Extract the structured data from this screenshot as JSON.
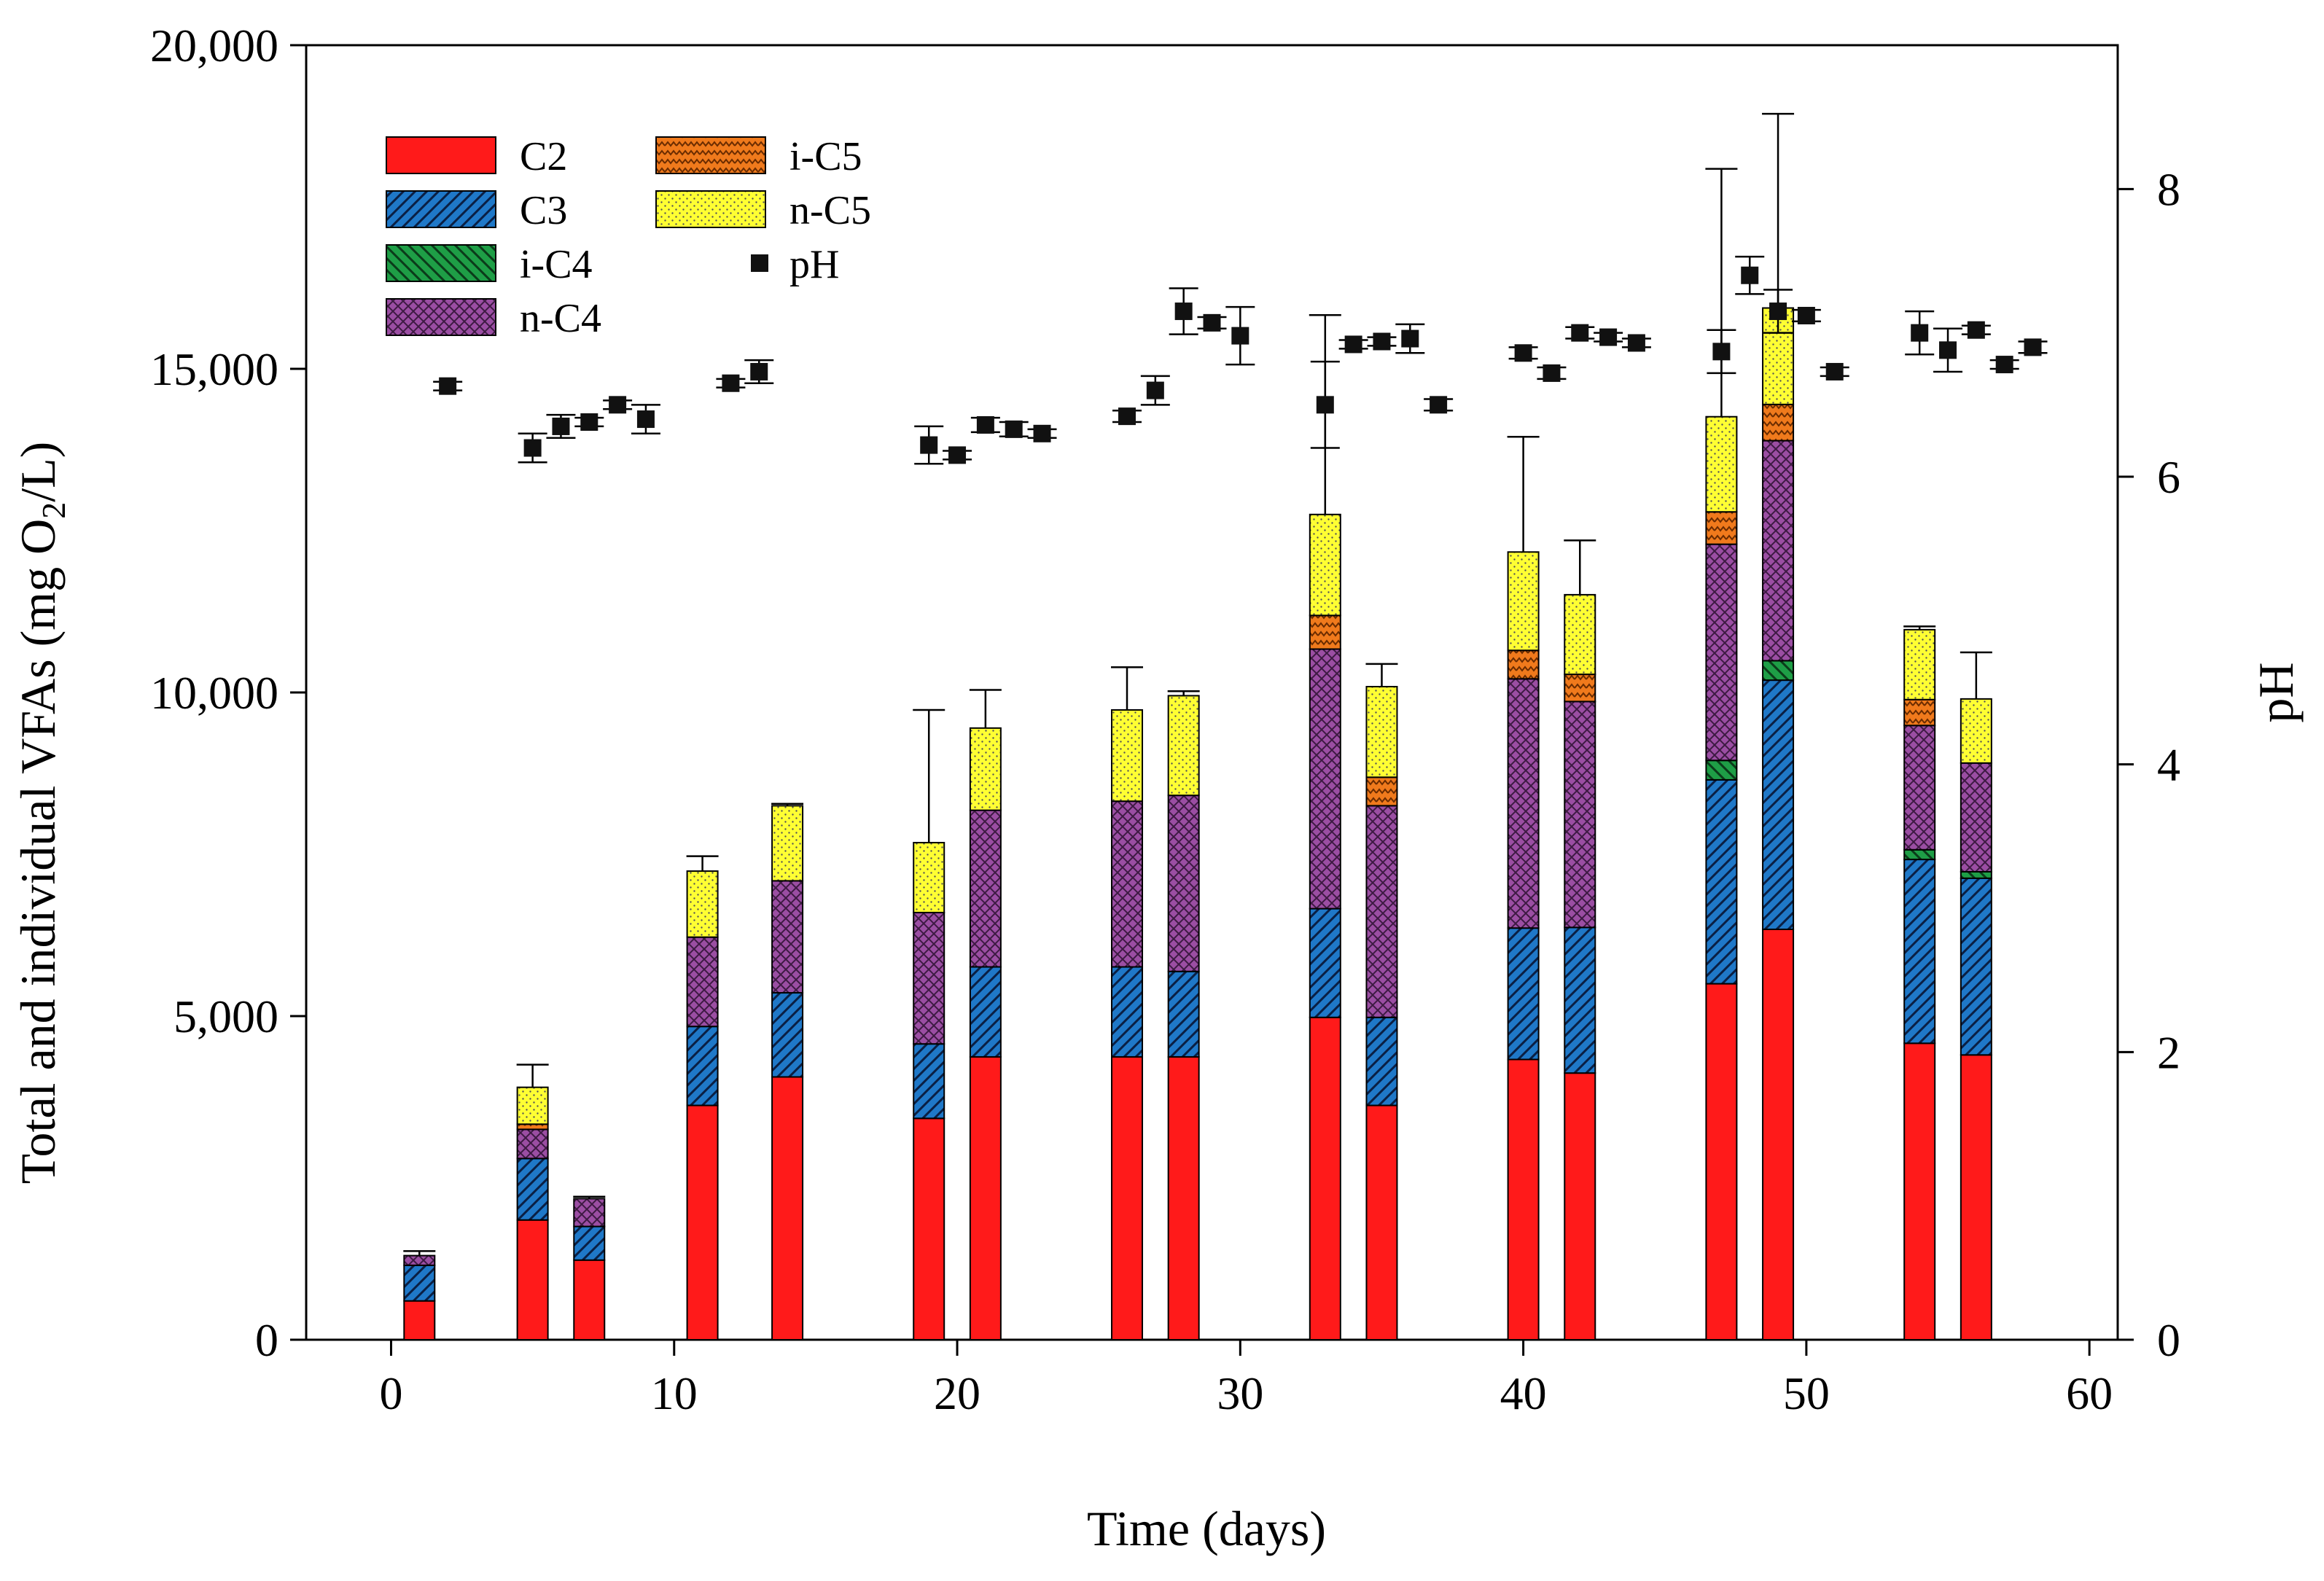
{
  "chart_data": {
    "type": "bar",
    "subtype": "stacked bar with pH scatter on secondary axis",
    "xlabel": "Time (days)",
    "ylabel_parts": [
      "Total and individual VFAs (mg O",
      "2",
      "/L)"
    ],
    "y2label": "pH",
    "xlim": [
      -3,
      61
    ],
    "ylim": [
      0,
      20000
    ],
    "y2lim": [
      0,
      9
    ],
    "x_ticks": [
      0,
      10,
      20,
      30,
      40,
      50,
      60
    ],
    "x_tick_labels": [
      "0",
      "10",
      "20",
      "30",
      "40",
      "50",
      "60"
    ],
    "y_ticks": [
      0,
      5000,
      10000,
      15000,
      20000
    ],
    "y_tick_labels": [
      "0",
      "5,000",
      "10,000",
      "15,000",
      "20,000"
    ],
    "y2_ticks": [
      0,
      2,
      4,
      6,
      8
    ],
    "y2_tick_labels": [
      "0",
      "2",
      "4",
      "6",
      "8"
    ],
    "grid": false,
    "legend_position": "top-left",
    "colors": {
      "C2": "#ff1a1a",
      "C3": "#1f78c8",
      "i-C4": "#1e9e46",
      "n-C4": "#9b4ea3",
      "i-C5": "#f07a1c",
      "n-C5": "#ffff33",
      "pH": "#111111"
    },
    "legend": [
      {
        "key": "C2",
        "label": "C2"
      },
      {
        "key": "C3",
        "label": "C3"
      },
      {
        "key": "i-C4",
        "label": "i-C4"
      },
      {
        "key": "n-C4",
        "label": "n-C4"
      },
      {
        "key": "i-C5",
        "label": "i-C5"
      },
      {
        "key": "n-C5",
        "label": "n-C5"
      },
      {
        "key": "pH",
        "label": "pH"
      }
    ],
    "series_order": [
      "C2",
      "C3",
      "i-C4",
      "n-C4",
      "i-C5",
      "n-C5"
    ],
    "bars": [
      {
        "day": 1,
        "C2": 600,
        "C3": 550,
        "i-C4": 0,
        "n-C4": 150,
        "i-C5": 0,
        "n-C5": 0,
        "err": 70
      },
      {
        "day": 5,
        "C2": 1850,
        "C3": 950,
        "i-C4": 0,
        "n-C4": 450,
        "i-C5": 80,
        "n-C5": 570,
        "err": 350
      },
      {
        "day": 7,
        "C2": 1230,
        "C3": 520,
        "i-C4": 0,
        "n-C4": 430,
        "i-C5": 0,
        "n-C5": 0,
        "err": 30
      },
      {
        "day": 11,
        "C2": 3620,
        "C3": 1220,
        "i-C4": 0,
        "n-C4": 1380,
        "i-C5": 0,
        "n-C5": 1020,
        "err": 230
      },
      {
        "day": 14,
        "C2": 4060,
        "C3": 1300,
        "i-C4": 0,
        "n-C4": 1730,
        "i-C5": 0,
        "n-C5": 1160,
        "err": 30
      },
      {
        "day": 19,
        "C2": 3420,
        "C3": 1150,
        "i-C4": 0,
        "n-C4": 2030,
        "i-C5": 0,
        "n-C5": 1080,
        "err": 2050
      },
      {
        "day": 21,
        "C2": 4370,
        "C3": 1390,
        "i-C4": 0,
        "n-C4": 2420,
        "i-C5": 0,
        "n-C5": 1270,
        "err": 590
      },
      {
        "day": 26,
        "C2": 4370,
        "C3": 1390,
        "i-C4": 0,
        "n-C4": 2560,
        "i-C5": 0,
        "n-C5": 1410,
        "err": 660
      },
      {
        "day": 28,
        "C2": 4370,
        "C3": 1320,
        "i-C4": 0,
        "n-C4": 2720,
        "i-C5": 0,
        "n-C5": 1540,
        "err": 70
      },
      {
        "day": 33,
        "C2": 4980,
        "C3": 1680,
        "i-C4": 0,
        "n-C4": 4010,
        "i-C5": 520,
        "n-C5": 1560,
        "err": 3080
      },
      {
        "day": 35,
        "C2": 3620,
        "C3": 1360,
        "i-C4": 0,
        "n-C4": 3270,
        "i-C5": 440,
        "n-C5": 1400,
        "err": 350
      },
      {
        "day": 40,
        "C2": 4330,
        "C3": 2030,
        "i-C4": 0,
        "n-C4": 3850,
        "i-C5": 440,
        "n-C5": 1520,
        "err": 1780
      },
      {
        "day": 42,
        "C2": 4120,
        "C3": 2250,
        "i-C4": 0,
        "n-C4": 3490,
        "i-C5": 420,
        "n-C5": 1230,
        "err": 840
      },
      {
        "day": 47,
        "C2": 5500,
        "C3": 3150,
        "i-C4": 300,
        "n-C4": 3340,
        "i-C5": 500,
        "n-C5": 1470,
        "err": 3830
      },
      {
        "day": 49,
        "C2": 6340,
        "C3": 3850,
        "i-C4": 300,
        "n-C4": 3400,
        "i-C5": 560,
        "n-C5": 1490,
        "err": 3000
      },
      {
        "day": 54,
        "C2": 4580,
        "C3": 2840,
        "i-C4": 150,
        "n-C4": 1920,
        "i-C5": 400,
        "n-C5": 1080,
        "err": 50
      },
      {
        "day": 56,
        "C2": 4400,
        "C3": 2730,
        "i-C4": 100,
        "n-C4": 1680,
        "i-C5": 0,
        "n-C5": 990,
        "err": 720
      }
    ],
    "pH": [
      {
        "x": 2,
        "y": 6.63,
        "err": 0.03
      },
      {
        "x": 5,
        "y": 6.2,
        "err": 0.1
      },
      {
        "x": 6,
        "y": 6.35,
        "err": 0.08
      },
      {
        "x": 7,
        "y": 6.38,
        "err": 0.03
      },
      {
        "x": 8,
        "y": 6.5,
        "err": 0.03
      },
      {
        "x": 9,
        "y": 6.4,
        "err": 0.1
      },
      {
        "x": 12,
        "y": 6.65,
        "err": 0.03
      },
      {
        "x": 13,
        "y": 6.73,
        "err": 0.08
      },
      {
        "x": 19,
        "y": 6.22,
        "err": 0.13
      },
      {
        "x": 20,
        "y": 6.15,
        "err": 0.03
      },
      {
        "x": 21,
        "y": 6.36,
        "err": 0.05
      },
      {
        "x": 22,
        "y": 6.33,
        "err": 0.05
      },
      {
        "x": 23,
        "y": 6.3,
        "err": 0.03
      },
      {
        "x": 26,
        "y": 6.42,
        "err": 0.04
      },
      {
        "x": 27,
        "y": 6.6,
        "err": 0.1
      },
      {
        "x": 28,
        "y": 7.15,
        "err": 0.16
      },
      {
        "x": 29,
        "y": 7.07,
        "err": 0.04
      },
      {
        "x": 30,
        "y": 6.98,
        "err": 0.2
      },
      {
        "x": 33,
        "y": 6.5,
        "err": 0.3
      },
      {
        "x": 34,
        "y": 6.92,
        "err": 0.03
      },
      {
        "x": 35,
        "y": 6.94,
        "err": 0.03
      },
      {
        "x": 36,
        "y": 6.96,
        "err": 0.1
      },
      {
        "x": 37,
        "y": 6.5,
        "err": 0.04
      },
      {
        "x": 40,
        "y": 6.86,
        "err": 0.04
      },
      {
        "x": 41,
        "y": 6.72,
        "err": 0.04
      },
      {
        "x": 42,
        "y": 7.0,
        "err": 0.04
      },
      {
        "x": 43,
        "y": 6.97,
        "err": 0.03
      },
      {
        "x": 44,
        "y": 6.93,
        "err": 0.03
      },
      {
        "x": 47,
        "y": 6.87,
        "err": 0.15
      },
      {
        "x": 48,
        "y": 7.4,
        "err": 0.13
      },
      {
        "x": 49,
        "y": 7.15,
        "err": 0.15
      },
      {
        "x": 50,
        "y": 7.12,
        "err": 0.04
      },
      {
        "x": 51,
        "y": 6.73,
        "err": 0.03
      },
      {
        "x": 54,
        "y": 7.0,
        "err": 0.15
      },
      {
        "x": 55,
        "y": 6.88,
        "err": 0.15
      },
      {
        "x": 56,
        "y": 7.02,
        "err": 0.03
      },
      {
        "x": 57,
        "y": 6.78,
        "err": 0.03
      },
      {
        "x": 58,
        "y": 6.9,
        "err": 0.04
      }
    ]
  }
}
